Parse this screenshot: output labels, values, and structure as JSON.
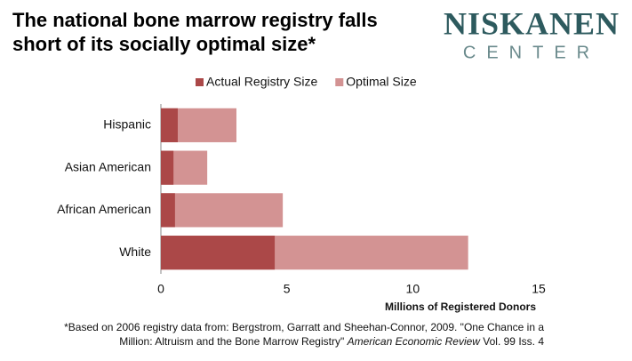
{
  "chart_data": {
    "type": "bar",
    "orientation": "horizontal",
    "overlap": true,
    "title": [
      "The national bone marrow registry falls",
      "short of its socially optimal size*"
    ],
    "logo": [
      "NISKANEN",
      "CENTER"
    ],
    "categories": [
      "Hispanic",
      "Asian American",
      "African American",
      "White"
    ],
    "series": [
      {
        "name": "Optimal Size",
        "color": "#d39393",
        "values": [
          3.0,
          1.84,
          4.84,
          12.2
        ]
      },
      {
        "name": "Actual Registry Size",
        "color": "#ab4848",
        "values": [
          0.67,
          0.5,
          0.56,
          4.52
        ]
      }
    ],
    "legend_order": [
      1,
      0
    ],
    "xlim": [
      0,
      15
    ],
    "xticks": [
      0,
      5,
      10,
      15
    ],
    "xlabel": "Millions of Registered Donors",
    "footnote": [
      "*Based on 2006 registry data from: Bergstrom, Garratt and Sheehan-Connor, 2009. \"One Chance in a",
      "Million: Altruism and the Bone Marrow Registry\" ",
      "American Economic Review",
      " Vol. 99 Iss. 4"
    ]
  }
}
